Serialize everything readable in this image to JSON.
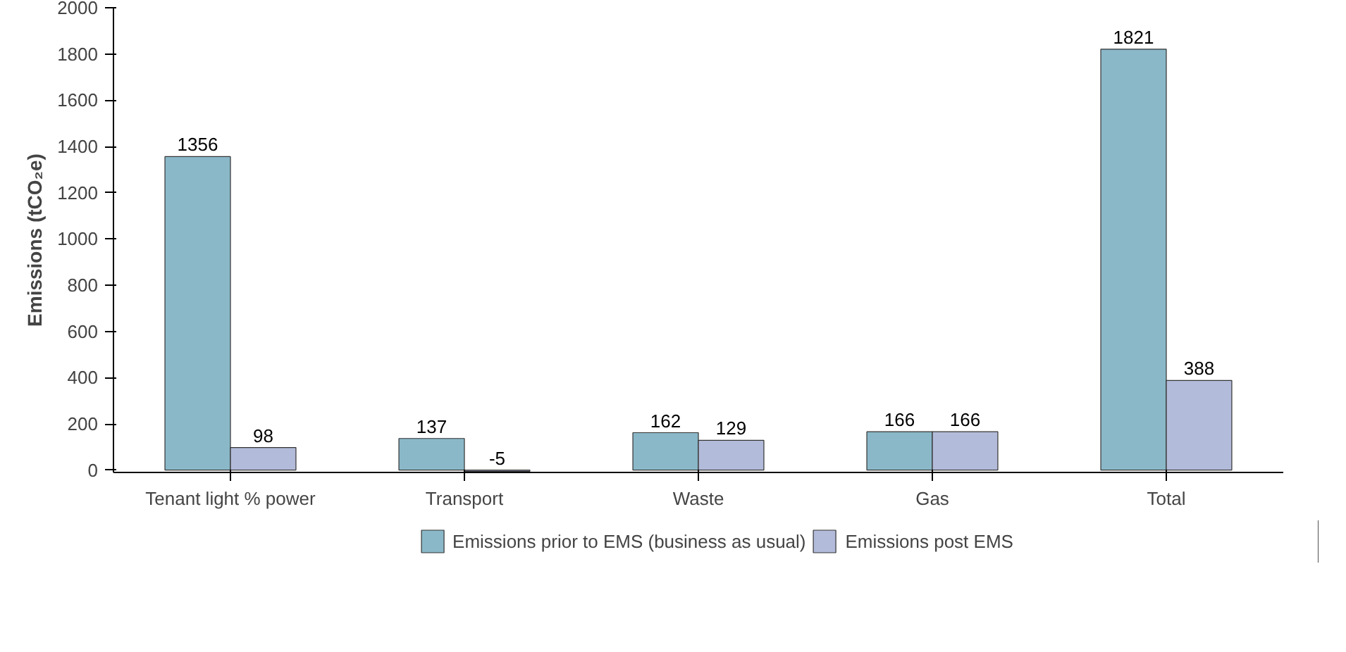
{
  "chart_data": {
    "type": "bar",
    "ylabel": "Emissions (tCO₂e)",
    "categories": [
      "Tenant light % power",
      "Transport",
      "Waste",
      "Gas",
      "Total"
    ],
    "series": [
      {
        "name": "Emissions prior to EMS (business as usual)",
        "color": "#8ab8c8",
        "values": [
          1356,
          137,
          162,
          166,
          1821
        ]
      },
      {
        "name": "Emissions post EMS",
        "color": "#b3bbda",
        "values": [
          98,
          -5,
          129,
          166,
          388
        ]
      }
    ],
    "ylim": [
      -10,
      2000
    ],
    "yticks": [
      0,
      200,
      400,
      600,
      800,
      1000,
      1200,
      1400,
      1600,
      1800,
      2000
    ],
    "data_labels": true,
    "grid": false,
    "legend": "bottom"
  }
}
